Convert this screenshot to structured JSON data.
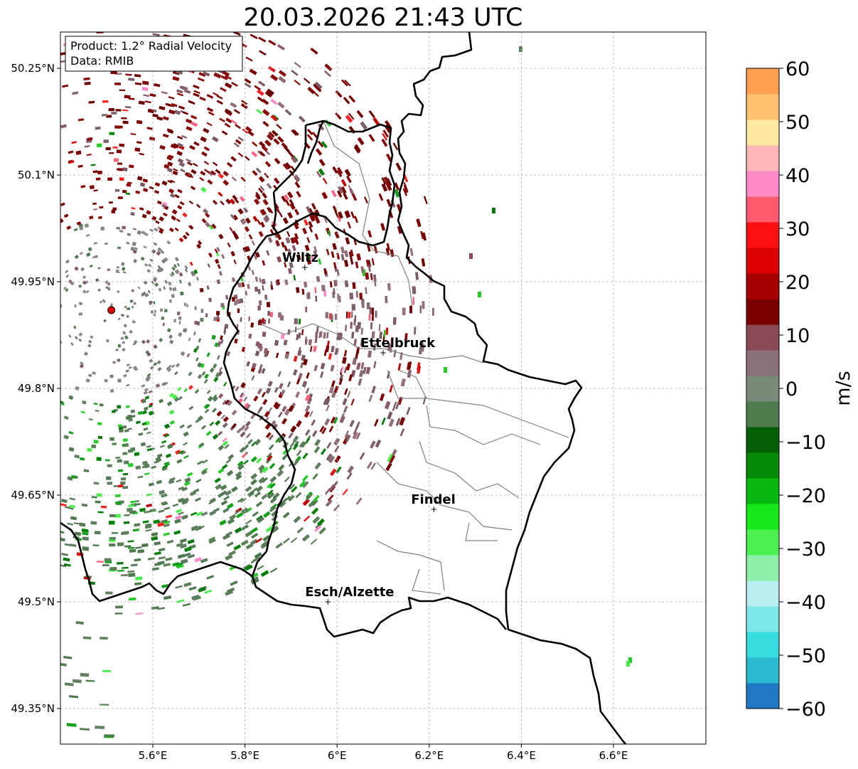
{
  "title": "20.03.2026 21:43 UTC",
  "info": {
    "product": "Product: 1.2° Radial Velocity",
    "data_source": "Data: RMIB"
  },
  "axes": {
    "lon_ticks": [
      "5.6°E",
      "5.8°E",
      "6°E",
      "6.2°E",
      "6.4°E",
      "6.6°E"
    ],
    "lat_ticks": [
      "50.25°N",
      "50.1°N",
      "49.95°N",
      "49.8°N",
      "49.65°N",
      "49.5°N",
      "49.35°N"
    ]
  },
  "cities": [
    {
      "name": "Wiltz",
      "lon": 5.93,
      "lat": 49.97
    },
    {
      "name": "Ettelbruck",
      "lon": 6.1,
      "lat": 49.85
    },
    {
      "name": "Findel",
      "lon": 6.21,
      "lat": 49.63
    },
    {
      "name": "Esch/Alzette",
      "lon": 5.98,
      "lat": 49.5
    }
  ],
  "radar_site": {
    "lon": 5.51,
    "lat": 49.91
  },
  "colorbar": {
    "unit": "m/s",
    "min": -60,
    "max": 60,
    "tick_labels": [
      "60",
      "50",
      "40",
      "30",
      "20",
      "10",
      "0",
      "−10",
      "−20",
      "−30",
      "−40",
      "−50",
      "−60"
    ],
    "stops": [
      "#2179c4",
      "#2ab9cf",
      "#35dde0",
      "#7ee8e8",
      "#b8eef0",
      "#8ef0a8",
      "#4cf050",
      "#16e81a",
      "#08b811",
      "#048a09",
      "#025f03",
      "#4f7a4e",
      "#7a8a78",
      "#8a7078",
      "#8a4a55",
      "#7a0000",
      "#a60000",
      "#dc0000",
      "#ff1010",
      "#ff5a70",
      "#ff8ac8",
      "#ffb8b8",
      "#ffe8a0",
      "#ffc070",
      "#ffa050"
    ]
  },
  "colors": {
    "border": "#000000",
    "canton_lines": "#808080",
    "grid": "#b0b0b0",
    "radar_marker": "#e00000"
  }
}
